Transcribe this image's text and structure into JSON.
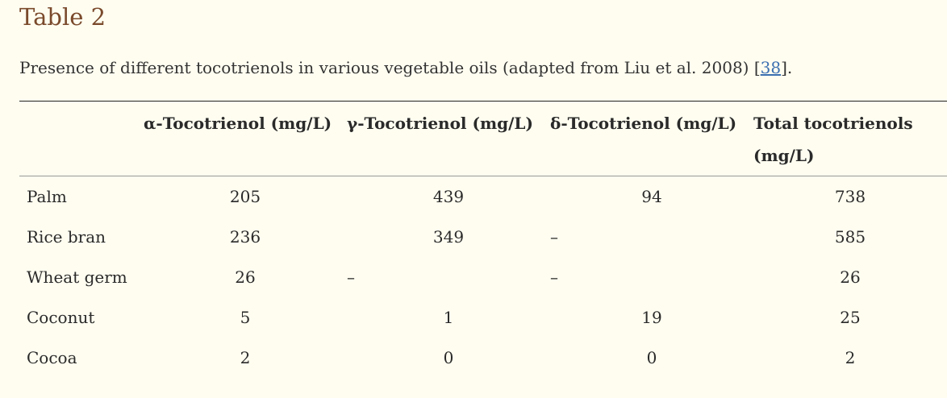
{
  "title": "Table 2",
  "caption": {
    "text": "Presence of different tocotrienols in various vegetable oils (adapted from Liu et al. 2008) [",
    "ref": "38",
    "end": "]."
  },
  "headers": [
    "",
    "α-Tocotrienol (mg/L)",
    "γ-Tocotrienol (mg/L)",
    "δ-Tocotrienol (mg/L)",
    "Total tocotrienols (mg/L)"
  ],
  "rows": [
    [
      "Palm",
      "205",
      "439",
      "94",
      "738"
    ],
    [
      "Rice bran",
      "236",
      "349",
      "–",
      "585"
    ],
    [
      "Wheat germ",
      "26",
      "–",
      "–",
      "26"
    ],
    [
      "Coconut",
      "5",
      "1",
      "19",
      "25"
    ],
    [
      "Cocoa",
      "2",
      "0",
      "0",
      "2"
    ]
  ],
  "colors": {
    "title": "#7a4a2c",
    "link": "#3a6fb0",
    "background": "#fffdf0"
  }
}
